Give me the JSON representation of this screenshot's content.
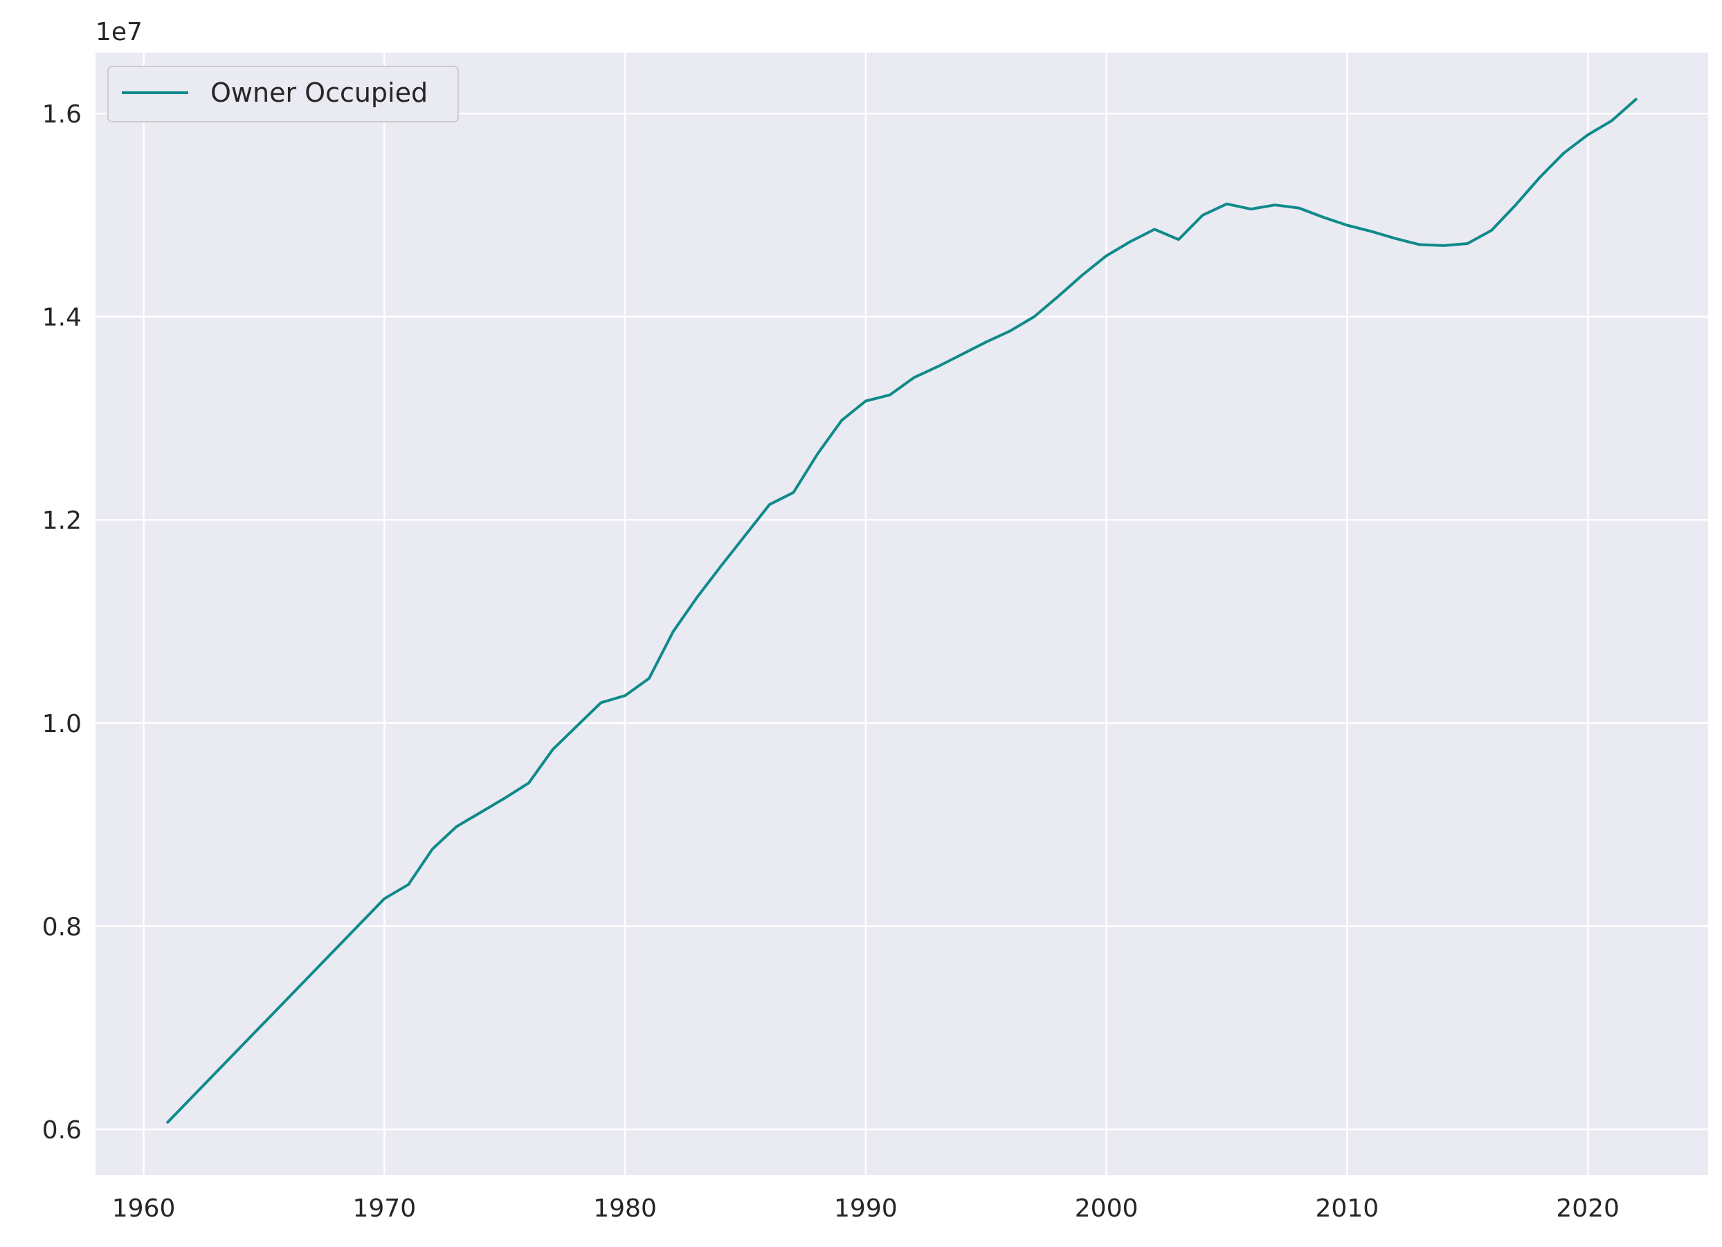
{
  "chart_data": {
    "type": "line",
    "title": "",
    "xlabel": "",
    "ylabel": "",
    "y_offset_label": "1e7",
    "xlim": [
      1958.0,
      2025.0
    ],
    "ylim": [
      0.555,
      1.66
    ],
    "x_ticks": [
      1960,
      1970,
      1980,
      1990,
      2000,
      2010,
      2020
    ],
    "x_tick_labels": [
      "1960",
      "1970",
      "1980",
      "1990",
      "2000",
      "2010",
      "2020"
    ],
    "y_ticks": [
      0.6,
      0.8,
      1.0,
      1.2,
      1.4,
      1.6
    ],
    "y_tick_labels": [
      "0.6",
      "0.8",
      "1.0",
      "1.2",
      "1.4",
      "1.6"
    ],
    "grid": true,
    "legend_position": "top-left",
    "colors": {
      "background": "#eaeaf2",
      "grid": "#ffffff",
      "line": "#108a8a"
    },
    "series": [
      {
        "name": "Owner Occupied",
        "x": [
          1961,
          1970,
          1971,
          1972,
          1973,
          1974,
          1975,
          1976,
          1977,
          1978,
          1979,
          1980,
          1981,
          1982,
          1983,
          1984,
          1985,
          1986,
          1987,
          1988,
          1989,
          1990,
          1991,
          1992,
          1993,
          1994,
          1995,
          1996,
          1997,
          1998,
          1999,
          2000,
          2001,
          2002,
          2003,
          2004,
          2005,
          2006,
          2007,
          2008,
          2009,
          2010,
          2011,
          2012,
          2013,
          2014,
          2015,
          2016,
          2017,
          2018,
          2019,
          2020,
          2021,
          2022
        ],
        "values": [
          0.607,
          0.827,
          0.841,
          0.876,
          0.898,
          0.912,
          0.926,
          0.941,
          0.974,
          0.997,
          1.02,
          1.027,
          1.044,
          1.09,
          1.124,
          1.155,
          1.185,
          1.215,
          1.227,
          1.265,
          1.298,
          1.317,
          1.323,
          1.34,
          1.351,
          1.363,
          1.375,
          1.386,
          1.4,
          1.42,
          1.441,
          1.46,
          1.474,
          1.486,
          1.476,
          1.5,
          1.511,
          1.506,
          1.51,
          1.507,
          1.498,
          1.49,
          1.484,
          1.477,
          1.471,
          1.47,
          1.472,
          1.485,
          1.51,
          1.537,
          1.561,
          1.579,
          1.593,
          1.614
        ]
      }
    ]
  }
}
